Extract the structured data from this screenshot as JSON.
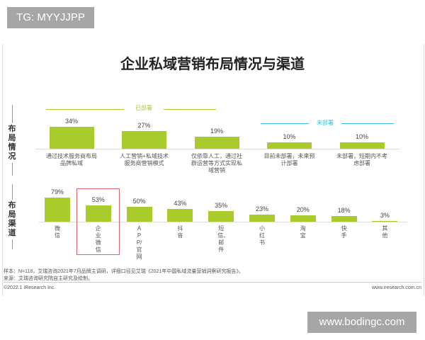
{
  "watermark_top": "TG: MYYJJPP",
  "watermark_bottom": "www.bodingc.com",
  "chart_data": [
    {
      "type": "bar",
      "title": "企业私域营销布局情况与渠道",
      "ylabel": "布局情况",
      "categories": [
        "通过技术服务商布局品牌私域",
        "人工营销+私域技术服务商营销模式",
        "仅依靠人工，通过社群运营等方式实现私域营销",
        "目前未部署，未来预计部署",
        "未部署，短期内不考虑部署"
      ],
      "values": [
        34,
        27,
        19,
        10,
        10
      ],
      "labels": [
        "34%",
        "27%",
        "19%",
        "10%",
        "10%"
      ],
      "groups": [
        {
          "label": "已部署",
          "color": "#a9cc2c"
        },
        {
          "label": "未部署",
          "color": "#3bbcd6"
        }
      ]
    },
    {
      "type": "bar",
      "ylabel": "布局渠道",
      "categories": [
        "微信",
        "企业微信",
        "APP/官网",
        "抖音",
        "短信、邮件",
        "小红书",
        "淘宝",
        "快手",
        "其他"
      ],
      "values": [
        79,
        53,
        50,
        43,
        35,
        23,
        20,
        18,
        3
      ],
      "labels": [
        "79%",
        "53%",
        "50%",
        "43%",
        "35%",
        "23%",
        "20%",
        "18%",
        "3%"
      ],
      "highlighted": "企业微信",
      "highlight_color": "#d9646e"
    }
  ],
  "bar_color": "#a9cc2c",
  "footer": {
    "sample": "样本：N=118，艾瑞咨询2021年7月品牌主调研，详细口径见艾瑞《2021年中国私域流量营销洞察研究报告》。",
    "source": "来源：艾瑞咨询研究院自主研究及绘制。",
    "copyright": "©2022.1 iResearch Inc.",
    "website": "www.iresearch.com.cn"
  }
}
